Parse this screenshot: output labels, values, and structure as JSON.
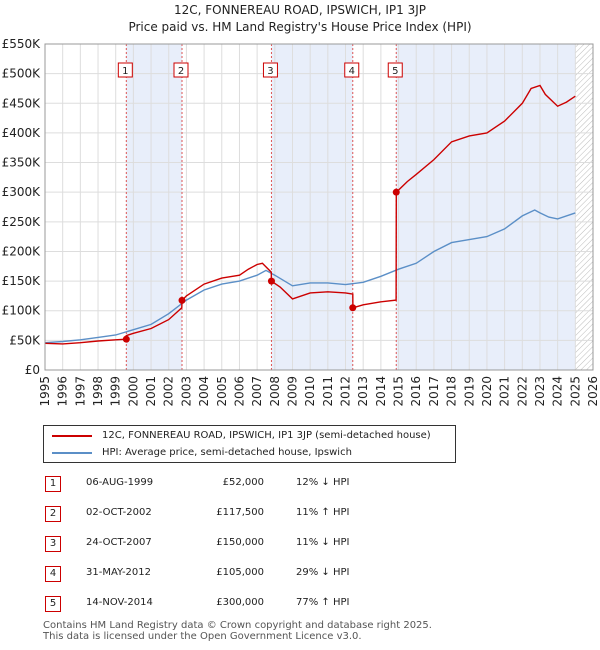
{
  "chart_data": {
    "type": "line",
    "title": "12C, FONNEREAU ROAD, IPSWICH, IP1 3JP",
    "subtitle": "Price paid vs. HM Land Registry's House Price Index (HPI)",
    "xlabel": "",
    "ylabel": "",
    "xlim": [
      1995,
      2026
    ],
    "ylim": [
      0,
      550000
    ],
    "x_ticks": [
      "1995",
      "1996",
      "1997",
      "1998",
      "1999",
      "2000",
      "2001",
      "2002",
      "2003",
      "2004",
      "2005",
      "2006",
      "2007",
      "2008",
      "2009",
      "2010",
      "2011",
      "2012",
      "2013",
      "2014",
      "2015",
      "2016",
      "2017",
      "2018",
      "2019",
      "2020",
      "2021",
      "2022",
      "2023",
      "2024",
      "2025",
      "2026"
    ],
    "y_ticks": [
      {
        "value": 0,
        "label": "£0"
      },
      {
        "value": 50000,
        "label": "£50K"
      },
      {
        "value": 100000,
        "label": "£100K"
      },
      {
        "value": 150000,
        "label": "£150K"
      },
      {
        "value": 200000,
        "label": "£200K"
      },
      {
        "value": 250000,
        "label": "£250K"
      },
      {
        "value": 300000,
        "label": "£300K"
      },
      {
        "value": 350000,
        "label": "£350K"
      },
      {
        "value": 400000,
        "label": "£400K"
      },
      {
        "value": 450000,
        "label": "£450K"
      },
      {
        "value": 500000,
        "label": "£500K"
      },
      {
        "value": 550000,
        "label": "£550K"
      }
    ],
    "grid": true,
    "series": [
      {
        "name": "12C, FONNEREAU ROAD, IPSWICH, IP1 3JP (semi-detached house)",
        "color": "#cc0000",
        "x": [
          1995.0,
          1996.0,
          1997.0,
          1998.0,
          1999.0,
          1999.59,
          1999.6,
          2000.0,
          2001.0,
          2002.0,
          2002.74,
          2002.75,
          2003.0,
          2004.0,
          2005.0,
          2006.0,
          2006.5,
          2007.0,
          2007.3,
          2007.8,
          2007.81,
          2008.3,
          2009.0,
          2010.0,
          2011.0,
          2012.0,
          2012.41,
          2012.42,
          2013.0,
          2014.0,
          2014.86,
          2014.87,
          2015.5,
          2016.0,
          2017.0,
          2018.0,
          2019.0,
          2020.0,
          2021.0,
          2022.0,
          2022.5,
          2023.0,
          2023.3,
          2024.0,
          2024.5,
          2025.0
        ],
        "y": [
          45000,
          44000,
          46000,
          49000,
          51000,
          52000,
          58000,
          62000,
          70000,
          85000,
          105000,
          117500,
          125000,
          145000,
          155000,
          160000,
          170000,
          178000,
          180000,
          165000,
          150000,
          140000,
          120000,
          130000,
          132000,
          130000,
          128000,
          105000,
          110000,
          115000,
          118000,
          300000,
          318000,
          330000,
          355000,
          385000,
          395000,
          400000,
          420000,
          450000,
          475000,
          480000,
          465000,
          445000,
          452000,
          462000
        ]
      },
      {
        "name": "HPI: Average price, semi-detached house, Ipswich",
        "color": "#5b8fc7",
        "x": [
          1995.0,
          1996.0,
          1997.0,
          1998.0,
          1999.0,
          2000.0,
          2001.0,
          2002.0,
          2003.0,
          2004.0,
          2005.0,
          2006.0,
          2007.0,
          2007.5,
          2008.0,
          2009.0,
          2010.0,
          2011.0,
          2012.0,
          2013.0,
          2014.0,
          2015.0,
          2016.0,
          2017.0,
          2018.0,
          2019.0,
          2020.0,
          2021.0,
          2022.0,
          2022.7,
          2023.0,
          2023.5,
          2024.0,
          2025.0
        ],
        "y": [
          46000,
          48000,
          51000,
          55000,
          59000,
          68000,
          77000,
          95000,
          118000,
          135000,
          145000,
          150000,
          160000,
          168000,
          160000,
          142000,
          147000,
          147000,
          144000,
          148000,
          158000,
          170000,
          180000,
          200000,
          215000,
          220000,
          225000,
          238000,
          260000,
          270000,
          265000,
          258000,
          255000,
          265000
        ]
      }
    ],
    "sales": [
      {
        "id": "1",
        "date": "06-AUG-1999",
        "x": 1999.6,
        "price": "£52,000",
        "value": 52000,
        "hpi": "12% ↓ HPI"
      },
      {
        "id": "2",
        "date": "02-OCT-2002",
        "x": 2002.75,
        "price": "£117,500",
        "value": 117500,
        "hpi": "11% ↑ HPI"
      },
      {
        "id": "3",
        "date": "24-OCT-2007",
        "x": 2007.81,
        "price": "£150,000",
        "value": 150000,
        "hpi": "11% ↓ HPI"
      },
      {
        "id": "4",
        "date": "31-MAY-2012",
        "x": 2012.41,
        "price": "£105,000",
        "value": 105000,
        "hpi": "29% ↓ HPI"
      },
      {
        "id": "5",
        "date": "14-NOV-2014",
        "x": 2014.87,
        "price": "£300,000",
        "value": 300000,
        "hpi": "77% ↑ HPI"
      }
    ]
  },
  "footer": {
    "line1": "Contains HM Land Registry data © Crown copyright and database right 2025.",
    "line2": "This data is licensed under the Open Government Licence v3.0."
  }
}
